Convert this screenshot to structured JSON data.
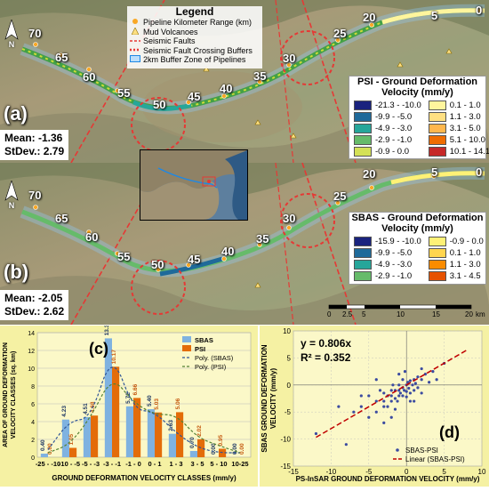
{
  "legend": {
    "title": "Legend",
    "items": [
      {
        "label": "Pipeline Kilometer Range (km)",
        "symbol": "orange-dot"
      },
      {
        "label": "Mud Volcanoes",
        "symbol": "triangle"
      },
      {
        "label": "Seismic Faults",
        "symbol": "red-dash"
      },
      {
        "label": "Seismic Fault Crossing Buffers",
        "symbol": "red-circle-dash"
      },
      {
        "label": "2km Buffer Zone of Pipelines",
        "symbol": "blue-box"
      }
    ]
  },
  "panel_a": {
    "label": "(a)",
    "mean": "Mean: -1.36",
    "stdev": "StDev.: 2.79",
    "km_labels": [
      "70",
      "65",
      "60",
      "55",
      "50",
      "45",
      "40",
      "35",
      "30",
      "25",
      "20",
      "5",
      "0"
    ],
    "velocity_legend": {
      "title": "PSI - Ground Deformation Velocity (mm/y)",
      "classes": [
        {
          "label": "-21.3 - -10.0",
          "color": "#1a237e"
        },
        {
          "label": "-9.9 - -5.0",
          "color": "#1f6a9a"
        },
        {
          "label": "-4.9 - -3.0",
          "color": "#26a69a"
        },
        {
          "label": "-2.9 - -1.0",
          "color": "#66bb6a"
        },
        {
          "label": "-0.9 - 0.0",
          "color": "#d4e157"
        },
        {
          "label": "0.1 - 1.0",
          "color": "#fff59d"
        },
        {
          "label": "1.1 - 3.0",
          "color": "#ffe082"
        },
        {
          "label": "3.1 - 5.0",
          "color": "#ffb74d"
        },
        {
          "label": "5.1 - 10.0",
          "color": "#ef6c00"
        },
        {
          "label": "10.1 - 14.1",
          "color": "#c62828"
        }
      ]
    }
  },
  "panel_b": {
    "label": "(b)",
    "mean": "Mean: -2.05",
    "stdev": "StDev.: 2.62",
    "km_labels": [
      "70",
      "65",
      "60",
      "55",
      "50",
      "45",
      "40",
      "35",
      "30",
      "25",
      "20",
      "5",
      "0"
    ],
    "velocity_legend": {
      "title": "SBAS - Ground Deformation Velocity (mm/y)",
      "classes": [
        {
          "label": "-15.9 - -10.0",
          "color": "#1a237e"
        },
        {
          "label": "-9.9 - -5.0",
          "color": "#1f6a9a"
        },
        {
          "label": "-4.9 - -3.0",
          "color": "#26a69a"
        },
        {
          "label": "-2.9 - -1.0",
          "color": "#66bb6a"
        },
        {
          "label": "-0.9 - 0.0",
          "color": "#fff176"
        },
        {
          "label": "0.1 - 1.0",
          "color": "#ffd54f"
        },
        {
          "label": "1.1 - 3.0",
          "color": "#fb8c00"
        },
        {
          "label": "3.1 - 4.5",
          "color": "#e65100"
        }
      ]
    },
    "scale_bar": {
      "ticks": [
        "0",
        "2.5",
        "5",
        "10",
        "15",
        "20"
      ],
      "unit": "km"
    }
  },
  "chart_data": [
    {
      "type": "bar",
      "panel_label": "(c)",
      "categories": [
        "-25 - -10",
        "-10 - -5",
        "-5 - -3",
        "-3 - -1",
        "-1 - 0",
        "0 - 1",
        "1 - 3",
        "3 - 5",
        "5 - 10",
        "10-25"
      ],
      "series": [
        {
          "name": "SBAS",
          "color": "#7fb2e0",
          "values": [
            0.4,
            4.23,
            4.51,
            13.36,
            5.72,
            5.4,
            2.63,
            0.7,
            0.0,
            0.0
          ]
        },
        {
          "name": "PSI",
          "color": "#e36c09",
          "values": [
            0.0,
            1.05,
            4.68,
            10.17,
            6.66,
            5.03,
            5.06,
            2.02,
            0.95,
            0.0
          ]
        }
      ],
      "bar_labels": {
        "SBAS": [
          "0.40",
          "4.23",
          "4.51",
          "13.36",
          "5.72",
          "5.40",
          "2.63",
          "0.70",
          "0.00",
          "0.00"
        ],
        "PSI": [
          "0.00",
          "1.05",
          "4.68",
          "10.17",
          "6.66",
          "5.03",
          "5.06",
          "2.02",
          "0.95",
          "0.00"
        ]
      },
      "trend_lines": [
        {
          "name": "Poly. (SBAS)",
          "color": "#2f5597"
        },
        {
          "name": "Poly. (PSI)",
          "color": "#548235"
        }
      ],
      "xlabel": "GROUND DEFORMATION VELOCITY CLASSES (mm/y)",
      "ylabel": "AREA OF GROUND DEFORMATION VELOCITY CLASSES (sq. km)",
      "ylim": [
        0,
        14
      ],
      "grid": true,
      "legend": "top-right"
    },
    {
      "type": "scatter",
      "panel_label": "(d)",
      "equation": "y = 0.806x",
      "r_squared": "R² = 0.352",
      "xlabel": "PS-InSAR  GROUND DEFORMATION VELOCITY (mm/y)",
      "ylabel": "SBAS GROUND DEFORMATION VELOCITY (mm/y)",
      "xlim": [
        -15,
        10
      ],
      "ylim": [
        -15,
        10
      ],
      "x_ticks": [
        "-15",
        "-10",
        "-5",
        "0",
        "5",
        "10"
      ],
      "y_ticks": [
        "-15",
        "-10",
        "-5",
        "0",
        "5",
        "10"
      ],
      "series": [
        {
          "name": "SBAS-PSI",
          "color": "#3b4ba0"
        }
      ],
      "trend_line": {
        "name": "Linear (SBAS-PSI)",
        "slope": 0.806,
        "color": "#c00000"
      },
      "points": [
        [
          -12,
          -9
        ],
        [
          -8,
          -11
        ],
        [
          -7,
          -5
        ],
        [
          -6,
          -4
        ],
        [
          -5,
          -6
        ],
        [
          -5,
          -2
        ],
        [
          -4,
          -3
        ],
        [
          -4,
          -5
        ],
        [
          -3.5,
          -1
        ],
        [
          -3,
          -3
        ],
        [
          -3,
          -4
        ],
        [
          -3,
          -1.5
        ],
        [
          -2.5,
          -2
        ],
        [
          -2.5,
          -4
        ],
        [
          -2,
          -2
        ],
        [
          -2,
          -1
        ],
        [
          -2,
          -3
        ],
        [
          -1.8,
          0
        ],
        [
          -1.5,
          -2.5
        ],
        [
          -1.5,
          -1
        ],
        [
          -1.2,
          -3
        ],
        [
          -1,
          -1
        ],
        [
          -1,
          0
        ],
        [
          -1,
          -2
        ],
        [
          -0.8,
          -1.5
        ],
        [
          -0.5,
          -0.5
        ],
        [
          -0.5,
          -2
        ],
        [
          -0.5,
          1
        ],
        [
          -0.3,
          -1
        ],
        [
          0,
          0
        ],
        [
          0,
          -1.2
        ],
        [
          0,
          -2.2
        ],
        [
          0.2,
          0.5
        ],
        [
          0.3,
          -0.6
        ],
        [
          0.5,
          -1.5
        ],
        [
          0.5,
          0.8
        ],
        [
          0.8,
          0
        ],
        [
          1,
          -1
        ],
        [
          1,
          1
        ],
        [
          1.2,
          0.3
        ],
        [
          1.5,
          -0.5
        ],
        [
          1.5,
          1.5
        ],
        [
          2,
          1
        ],
        [
          2,
          -1.5
        ],
        [
          2.5,
          2
        ],
        [
          3,
          0.5
        ],
        [
          3.5,
          2.5
        ],
        [
          4,
          1
        ],
        [
          -2,
          -6
        ],
        [
          -6,
          -2
        ],
        [
          -4,
          1
        ],
        [
          -1,
          2
        ],
        [
          1,
          -3
        ],
        [
          2,
          3
        ],
        [
          -3,
          -7
        ],
        [
          0.5,
          -3
        ],
        [
          -0.2,
          2.5
        ],
        [
          5,
          4
        ],
        [
          -9,
          -4
        ],
        [
          -1.5,
          -4.5
        ]
      ],
      "legend": "bottom-right",
      "grid": true
    }
  ]
}
